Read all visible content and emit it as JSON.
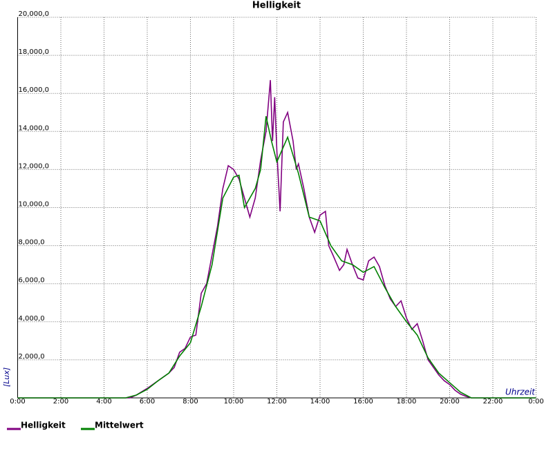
{
  "chart_data": {
    "type": "line",
    "title": "Helligkeit",
    "y_label": "[Lux]",
    "x_label": "Uhrzeit",
    "xlim": [
      0,
      24
    ],
    "ylim": [
      0,
      20000
    ],
    "grid": true,
    "legend": "bottom-left",
    "xticks": [
      {
        "value": 0,
        "label": "0:00"
      },
      {
        "value": 2,
        "label": "2:00"
      },
      {
        "value": 4,
        "label": "4:00"
      },
      {
        "value": 6,
        "label": "6:00"
      },
      {
        "value": 8,
        "label": "8:00"
      },
      {
        "value": 10,
        "label": "10:00"
      },
      {
        "value": 12,
        "label": "12:00"
      },
      {
        "value": 14,
        "label": "14:00"
      },
      {
        "value": 16,
        "label": "16:00"
      },
      {
        "value": 18,
        "label": "18:00"
      },
      {
        "value": 20,
        "label": "20:00"
      },
      {
        "value": 22,
        "label": "22:00"
      },
      {
        "value": 24,
        "label": "0:00"
      }
    ],
    "yticks": [
      {
        "value": 2000,
        "label": "2,000,0"
      },
      {
        "value": 4000,
        "label": "4,000,0"
      },
      {
        "value": 6000,
        "label": "6,000,0"
      },
      {
        "value": 8000,
        "label": "8,000,0"
      },
      {
        "value": 10000,
        "label": "10,000,0"
      },
      {
        "value": 12000,
        "label": "12,000,0"
      },
      {
        "value": 14000,
        "label": "14,000,0"
      },
      {
        "value": 16000,
        "label": "16,000,0"
      },
      {
        "value": 18000,
        "label": "18,000,0"
      },
      {
        "value": 20000,
        "label": "20,000,0"
      }
    ],
    "series": [
      {
        "name": "Helligkeit",
        "color": "#800080",
        "x": [
          0,
          5.2,
          5.5,
          6.0,
          6.5,
          7.0,
          7.25,
          7.5,
          7.75,
          8.0,
          8.25,
          8.5,
          8.75,
          9.0,
          9.25,
          9.5,
          9.75,
          10.0,
          10.25,
          10.5,
          10.75,
          11.0,
          11.25,
          11.5,
          11.7,
          11.8,
          11.9,
          12.0,
          12.15,
          12.3,
          12.5,
          12.75,
          12.9,
          13.0,
          13.25,
          13.5,
          13.75,
          14.0,
          14.25,
          14.4,
          14.6,
          14.9,
          15.1,
          15.25,
          15.5,
          15.75,
          16.0,
          16.25,
          16.5,
          16.75,
          17.0,
          17.25,
          17.5,
          17.75,
          18.0,
          18.25,
          18.5,
          18.75,
          19.0,
          19.25,
          19.5,
          19.75,
          20.0,
          20.25,
          20.5,
          20.75,
          21.0,
          24
        ],
        "values": [
          0,
          0,
          150,
          500,
          900,
          1300,
          1600,
          2400,
          2600,
          3200,
          3300,
          5500,
          6000,
          7500,
          9000,
          11000,
          12200,
          12000,
          11500,
          10500,
          9500,
          10500,
          12500,
          14000,
          16700,
          13500,
          15800,
          13000,
          9800,
          14500,
          15000,
          13500,
          12000,
          12300,
          11000,
          9500,
          8700,
          9600,
          9800,
          8000,
          7500,
          6700,
          7000,
          7800,
          7000,
          6300,
          6200,
          7200,
          7400,
          6900,
          5900,
          5200,
          4800,
          5100,
          4200,
          3600,
          3900,
          3000,
          2000,
          1600,
          1200,
          900,
          700,
          400,
          200,
          80,
          0,
          0
        ]
      },
      {
        "name": "Mittelwert",
        "color": "#008000",
        "x": [
          0,
          5.0,
          5.5,
          6.0,
          6.5,
          7.0,
          7.5,
          8.0,
          8.5,
          9.0,
          9.5,
          10.0,
          10.25,
          10.5,
          11.0,
          11.25,
          11.5,
          11.75,
          12.0,
          12.5,
          13.0,
          13.5,
          14.0,
          14.5,
          15.0,
          15.5,
          16.0,
          16.5,
          17.0,
          17.5,
          18.0,
          18.5,
          19.0,
          19.5,
          20.0,
          20.5,
          21.0,
          24
        ],
        "values": [
          0,
          0,
          150,
          450,
          900,
          1300,
          2200,
          2900,
          4800,
          7000,
          10500,
          11600,
          11700,
          10000,
          11000,
          12000,
          14800,
          13500,
          12400,
          13700,
          11800,
          9500,
          9300,
          8000,
          7200,
          7000,
          6600,
          6900,
          5800,
          4800,
          4000,
          3300,
          2100,
          1300,
          800,
          300,
          0,
          0
        ]
      }
    ]
  }
}
